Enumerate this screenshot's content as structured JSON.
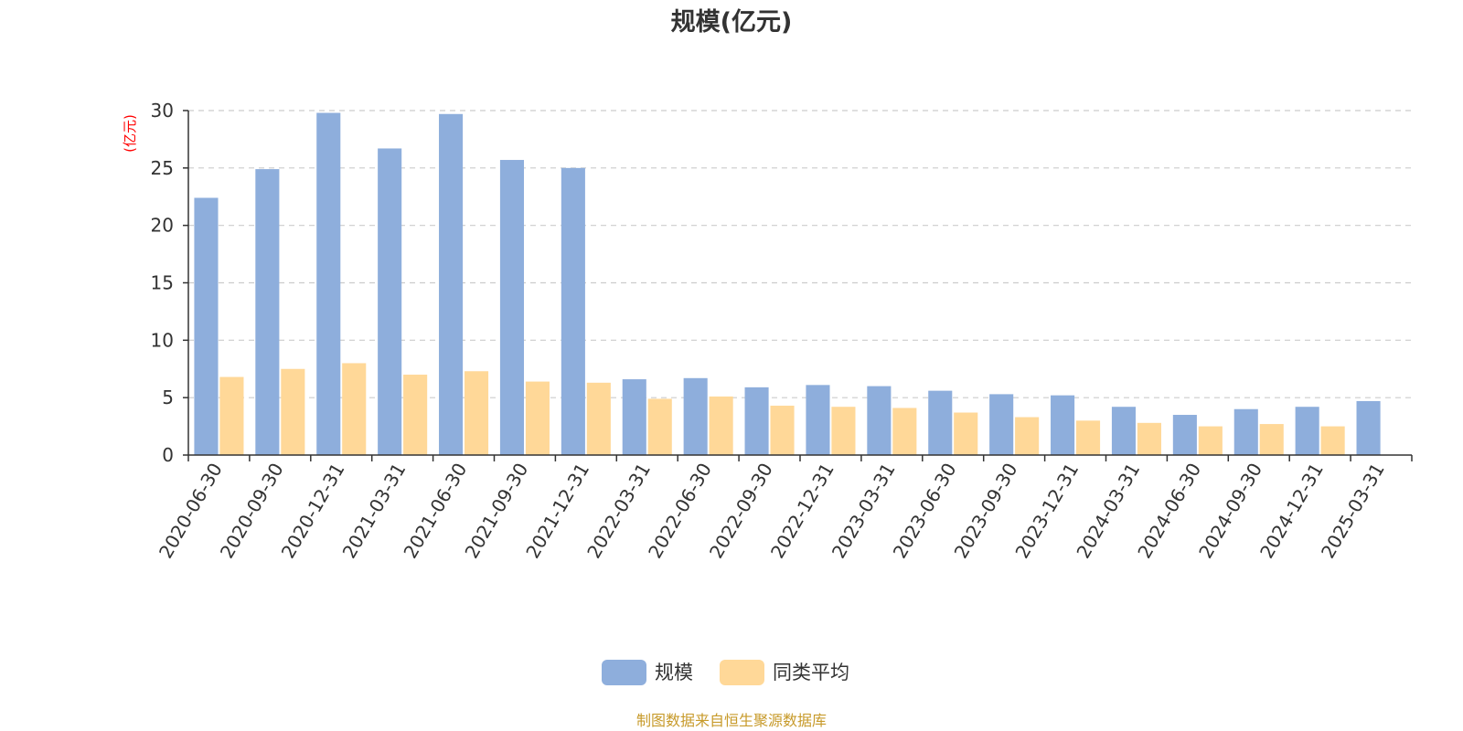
{
  "chart_data": {
    "type": "bar",
    "title": "规模(亿元)",
    "ylabel": "(亿元)",
    "xlabel": "",
    "ylim": [
      0,
      30
    ],
    "yticks": [
      0,
      5,
      10,
      15,
      20,
      25,
      30
    ],
    "grid": true,
    "legend_position": "bottom-center",
    "categories": [
      "2020-06-30",
      "2020-09-30",
      "2020-12-31",
      "2021-03-31",
      "2021-06-30",
      "2021-09-30",
      "2021-12-31",
      "2022-03-31",
      "2022-06-30",
      "2022-09-30",
      "2022-12-31",
      "2023-03-31",
      "2023-06-30",
      "2023-09-30",
      "2023-12-31",
      "2024-03-31",
      "2024-06-30",
      "2024-09-30",
      "2024-12-31",
      "2025-03-31"
    ],
    "series": [
      {
        "name": "规模",
        "color": "#8eaedc",
        "values": [
          22.4,
          24.9,
          29.8,
          26.7,
          29.7,
          25.7,
          25.0,
          6.6,
          6.7,
          5.9,
          6.1,
          6.0,
          5.6,
          5.3,
          5.2,
          4.2,
          3.5,
          4.0,
          4.2,
          4.7
        ]
      },
      {
        "name": "同类平均",
        "color": "#ffd898",
        "values": [
          6.8,
          7.5,
          8.0,
          7.0,
          7.3,
          6.4,
          6.3,
          4.9,
          5.1,
          4.3,
          4.2,
          4.1,
          3.7,
          3.3,
          3.0,
          2.8,
          2.5,
          2.7,
          2.5,
          null
        ]
      }
    ]
  },
  "source_note": "制图数据来自恒生聚源数据库",
  "colors": {
    "unit_label": "#ff0000",
    "source_note": "#c79a2a",
    "grid": "#cccccc",
    "axis": "#333333"
  }
}
